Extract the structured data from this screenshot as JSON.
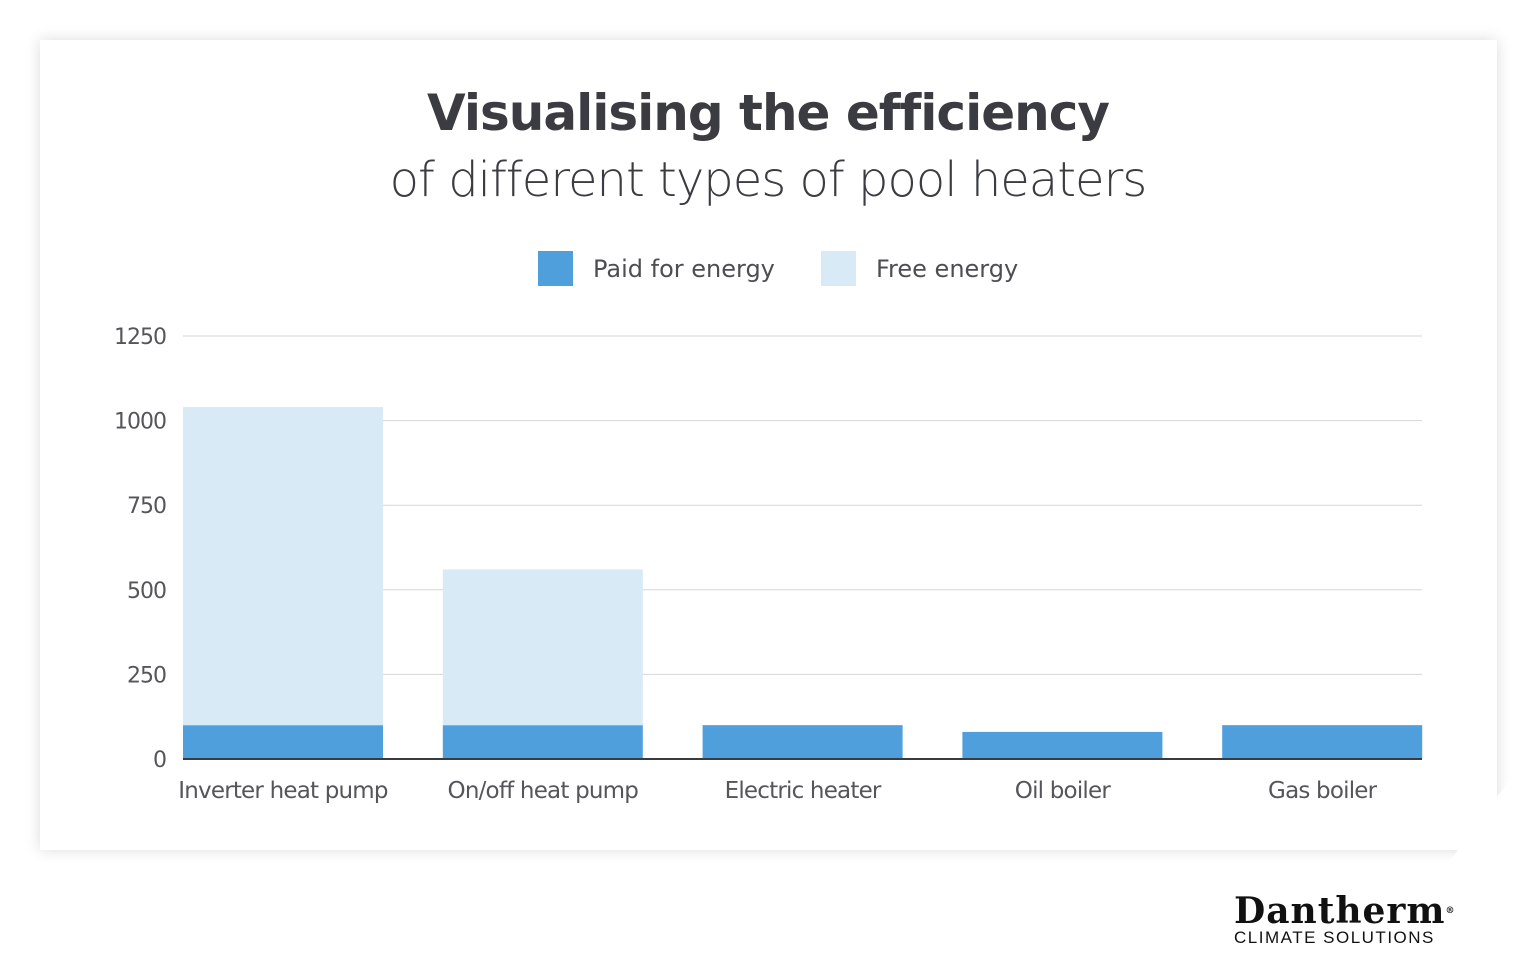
{
  "chart_data": {
    "type": "bar",
    "stacked": true,
    "title": "Visualising the efficiency",
    "subtitle": "of different types of pool heaters",
    "categories": [
      "Inverter heat pump",
      "On/off heat pump",
      "Electric heater",
      "Oil boiler",
      "Gas boiler"
    ],
    "series": [
      {
        "name": "Paid for energy",
        "color": "#4e9fdc",
        "values": [
          100,
          100,
          100,
          80,
          100
        ]
      },
      {
        "name": "Free energy",
        "color": "#d9eaf7",
        "values": [
          940,
          460,
          0,
          0,
          0
        ]
      }
    ],
    "yticks": [
      "0",
      "250",
      "500",
      "750",
      "1000",
      "1250"
    ],
    "ylim": [
      0,
      1250
    ],
    "xlabel": "",
    "ylabel": "",
    "grid": true,
    "legend": "top"
  },
  "brand": {
    "name": "Dantherm",
    "registered": "®",
    "tagline": "CLIMATE SOLUTIONS"
  }
}
